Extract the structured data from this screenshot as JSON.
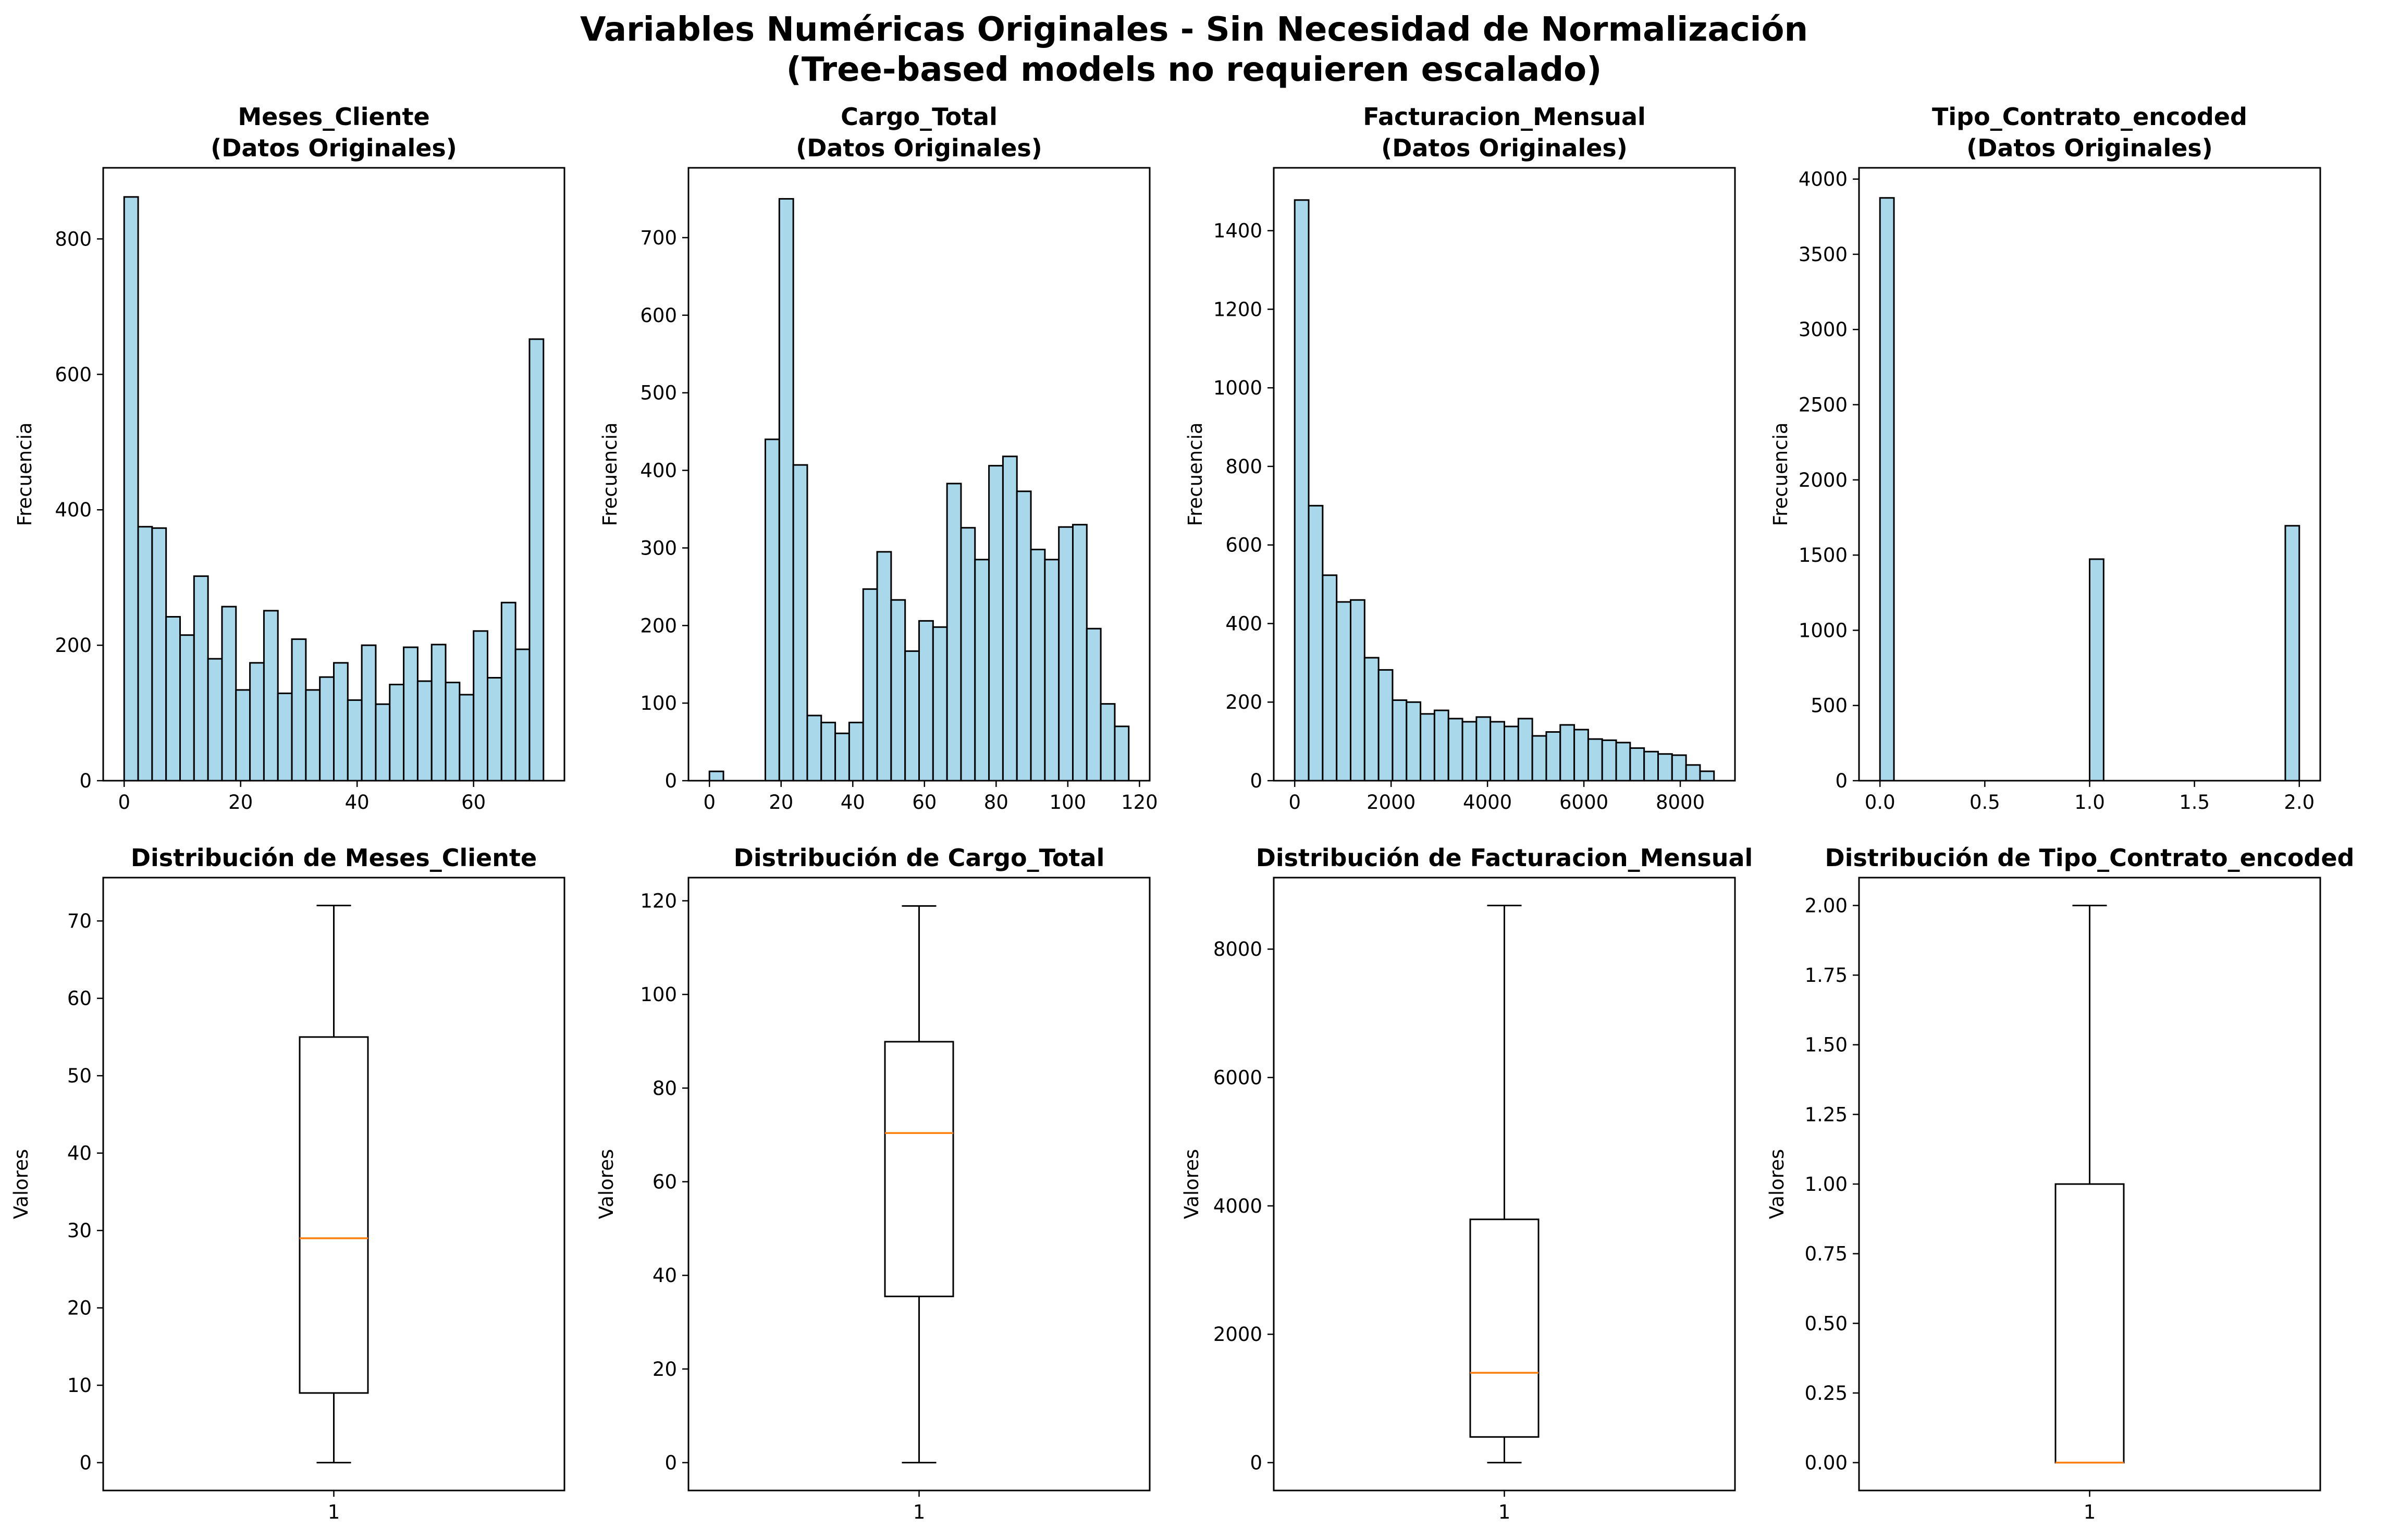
{
  "title": {
    "line1": "Variables Numéricas Originales - Sin Necesidad de Normalización",
    "line2": "(Tree-based models no requieren escalado)"
  },
  "colors": {
    "hist_fill": "#a8d8ea",
    "edge": "#000000",
    "median": "#ff7f0e"
  },
  "chart_data": [
    {
      "type": "bar",
      "title": [
        "Meses_Cliente",
        "(Datos Originales)"
      ],
      "ylabel": "Frecuencia",
      "xlim": [
        -3.6,
        75.6
      ],
      "ylim": [
        0,
        905
      ],
      "xticks": [
        0,
        20,
        40,
        60
      ],
      "yticks": [
        0,
        200,
        400,
        600,
        800
      ],
      "bin_start": 0,
      "bin_width": 2.4,
      "values": [
        862,
        375,
        373,
        242,
        215,
        302,
        180,
        257,
        134,
        174,
        251,
        129,
        209,
        134,
        153,
        174,
        119,
        200,
        113,
        142,
        197,
        147,
        201,
        145,
        127,
        221,
        152,
        263,
        194,
        652
      ]
    },
    {
      "type": "bar",
      "title": [
        "Cargo_Total",
        "(Datos Originales)"
      ],
      "ylabel": "Frecuencia",
      "xlim": [
        -5.85,
        122.85
      ],
      "ylim": [
        0,
        790
      ],
      "xticks": [
        0,
        20,
        40,
        60,
        80,
        100,
        120
      ],
      "yticks": [
        0,
        100,
        200,
        300,
        400,
        500,
        600,
        700
      ],
      "bin_start": 0,
      "bin_width": 3.9,
      "values": [
        12,
        0,
        0,
        0,
        440,
        750,
        407,
        84,
        75,
        61,
        75,
        247,
        295,
        233,
        167,
        206,
        198,
        383,
        326,
        285,
        406,
        418,
        373,
        298,
        285,
        327,
        330,
        196,
        99,
        70
      ]
    },
    {
      "type": "bar",
      "title": [
        "Facturacion_Mensual",
        "(Datos Originales)"
      ],
      "ylabel": "Frecuencia",
      "xlim": [
        -435,
        9135
      ],
      "ylim": [
        0,
        1560
      ],
      "xticks": [
        0,
        2000,
        4000,
        6000,
        8000
      ],
      "yticks": [
        0,
        200,
        400,
        600,
        800,
        1000,
        1200,
        1400
      ],
      "bin_start": 0,
      "bin_width": 290,
      "values": [
        1478,
        700,
        523,
        455,
        460,
        313,
        282,
        205,
        200,
        170,
        179,
        158,
        150,
        162,
        150,
        138,
        158,
        114,
        124,
        142,
        130,
        106,
        103,
        97,
        83,
        74,
        68,
        65,
        40,
        24
      ]
    },
    {
      "type": "bar",
      "title": [
        "Tipo_Contrato_encoded",
        "(Datos Originales)"
      ],
      "ylabel": "Frecuencia",
      "xlim": [
        -0.1,
        2.1
      ],
      "ylim": [
        0,
        4075
      ],
      "xticks": [
        0.0,
        0.5,
        1.0,
        1.5,
        2.0
      ],
      "yticks": [
        0,
        500,
        1000,
        1500,
        2000,
        2500,
        3000,
        3500,
        4000
      ],
      "bin_start": 0,
      "bin_width": 0.0666667,
      "values": [
        3875,
        0,
        0,
        0,
        0,
        0,
        0,
        0,
        0,
        0,
        0,
        0,
        0,
        0,
        0,
        1473,
        0,
        0,
        0,
        0,
        0,
        0,
        0,
        0,
        0,
        0,
        0,
        0,
        0,
        1695
      ]
    },
    {
      "type": "box",
      "title": [
        "Distribución de Meses_Cliente"
      ],
      "ylabel": "Valores",
      "xtick": "1",
      "ylim": [
        -3.6,
        75.6
      ],
      "yticks": [
        0,
        10,
        20,
        30,
        40,
        50,
        60,
        70
      ],
      "whisker_low": 0,
      "q1": 9,
      "median": 29,
      "q3": 55,
      "whisker_high": 72
    },
    {
      "type": "box",
      "title": [
        "Distribución de Cargo_Total"
      ],
      "ylabel": "Valores",
      "xtick": "1",
      "ylim": [
        -5.95,
        124.95
      ],
      "yticks": [
        0,
        20,
        40,
        60,
        80,
        100,
        120
      ],
      "whisker_low": 0,
      "q1": 35.5,
      "median": 70.4,
      "q3": 89.9,
      "whisker_high": 118.9
    },
    {
      "type": "box",
      "title": [
        "Distribución de Facturacion_Mensual"
      ],
      "ylabel": "Valores",
      "xtick": "1",
      "ylim": [
        -434,
        9114
      ],
      "yticks": [
        0,
        2000,
        4000,
        6000,
        8000
      ],
      "whisker_low": 0,
      "q1": 400,
      "median": 1400,
      "q3": 3790,
      "whisker_high": 8680
    },
    {
      "type": "box",
      "title": [
        "Distribución de Tipo_Contrato_encoded"
      ],
      "ylabel": "Valores",
      "xtick": "1",
      "ylim": [
        -0.1,
        2.1
      ],
      "yticks": [
        0.0,
        0.25,
        0.5,
        0.75,
        1.0,
        1.25,
        1.5,
        1.75,
        2.0
      ],
      "whisker_low": 0,
      "q1": 0,
      "median": 0,
      "q3": 1,
      "whisker_high": 2
    }
  ]
}
